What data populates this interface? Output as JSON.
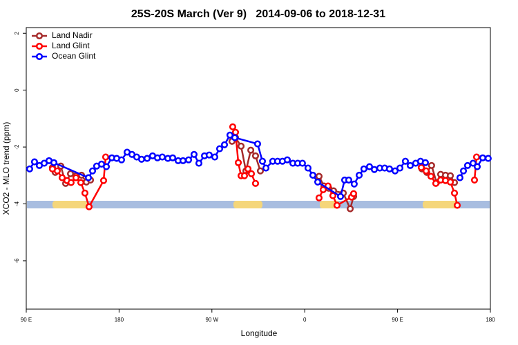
{
  "chart_data": {
    "type": "line",
    "title": "25S-20S March (Ver 9)   2014-09-06 to 2018-12-31",
    "x_label": "Longitude",
    "y_label": "XCO2 - MLO trend (ppm)",
    "xlim": [
      90,
      540
    ],
    "ylim": [
      -7.7,
      2.2
    ],
    "xticks": [
      {
        "value": 90,
        "label": "90 E"
      },
      {
        "value": 180,
        "label": "180"
      },
      {
        "value": 270,
        "label": "90 W"
      },
      {
        "value": 360,
        "label": "0"
      },
      {
        "value": 450,
        "label": "90 E"
      },
      {
        "value": 540,
        "label": "180"
      }
    ],
    "yticks": [
      2,
      0,
      -2,
      -4,
      -6
    ],
    "legend": "top-left",
    "series": [
      {
        "name": "Land Nadir",
        "color": "#a52a2a",
        "x": [
          115.4,
          118.1,
          123.5,
          128.2,
          132.9,
          138.2,
          143.6,
          148.3,
          152.3,
          null,
          289.5,
          292.9,
          298.3,
          303,
          307.7,
          312.3,
          317,
          null,
          373.9,
          378.6,
          383.3,
          388,
          397.4,
          404.1,
          407.4,
          null,
          473.7,
          478.3,
          483,
          487.8,
          491.8,
          496.5,
          501.2,
          505.2
        ],
        "values": [
          -2.72,
          -2.89,
          -2.67,
          -3.28,
          -2.94,
          -3.01,
          -2.99,
          -3.23,
          -3.16,
          null,
          -1.8,
          -1.67,
          -1.97,
          -2.84,
          -2.11,
          -2.31,
          -2.84,
          null,
          -3.03,
          -3.37,
          -3.45,
          -3.54,
          -3.62,
          -4.17,
          -3.74,
          null,
          -2.77,
          -2.89,
          -2.65,
          -3.25,
          -2.96,
          -2.99,
          -3.01,
          -3.25
        ]
      },
      {
        "name": "Land Glint",
        "color": "#ff0000",
        "x": [
          115.4,
          120.1,
          124.8,
          129.5,
          133.5,
          138.2,
          142.9,
          146.9,
          150.9,
          165,
          167,
          null,
          290.2,
          292.9,
          295.6,
          298.3,
          301.6,
          305,
          308.3,
          312.3,
          null,
          373.9,
          377.9,
          382.6,
          387.3,
          391.3,
          405.4,
          407.4,
          null,
          473,
          477.7,
          482.4,
          487.1,
          491.8,
          496.5,
          501.2,
          505.2,
          507.9,
          null,
          524.6,
          526.6
        ],
        "values": [
          -2.77,
          -2.84,
          -3.08,
          -3.18,
          -3.25,
          -3.08,
          -3.25,
          -3.62,
          -4.1,
          -3.18,
          -2.35,
          null,
          -1.29,
          -1.48,
          -2.55,
          -3.01,
          -3.01,
          -2.77,
          -2.94,
          -3.28,
          null,
          -3.79,
          -3.5,
          -3.37,
          -3.71,
          -4.05,
          -3.76,
          -3.64,
          null,
          -2.72,
          -2.84,
          -3.03,
          -3.28,
          -3.16,
          -3.18,
          -3.23,
          -3.62,
          -4.05,
          null,
          -3.16,
          -2.35
        ]
      },
      {
        "name": "Ocean Glint",
        "color": "#0000ff",
        "x": [
          93.3,
          98,
          102.7,
          107.4,
          112.1,
          116.8,
          150.3,
          154.3,
          158.3,
          163,
          167.7,
          173,
          177.7,
          182.4,
          187.8,
          192.5,
          197.1,
          201.8,
          207.2,
          212.5,
          217.2,
          221.9,
          227.3,
          232,
          237.3,
          242,
          247.4,
          252.7,
          257.4,
          262.8,
          267.4,
          272.8,
          277.5,
          282.2,
          287.5,
          292.2,
          314.3,
          319,
          322.4,
          329,
          333.7,
          338.4,
          343.1,
          348.5,
          353.2,
          357.8,
          363.2,
          367.9,
          372.6,
          394.7,
          398.7,
          402.7,
          408,
          412.8,
          417.4,
          422.8,
          427.5,
          432.8,
          437.5,
          442.2,
          447.6,
          452.3,
          457.6,
          462.3,
          467.6,
          472.3,
          477,
          null,
          510.5,
          513.9,
          517.9,
          523.2,
          527.3,
          532.6,
          537.9
        ],
        "values": [
          -2.77,
          -2.52,
          -2.65,
          -2.57,
          -2.48,
          -2.55,
          -3.08,
          -2.84,
          -2.67,
          -2.6,
          -2.69,
          -2.38,
          -2.4,
          -2.45,
          -2.18,
          -2.26,
          -2.35,
          -2.43,
          -2.4,
          -2.31,
          -2.38,
          -2.35,
          -2.4,
          -2.38,
          -2.48,
          -2.48,
          -2.45,
          -2.26,
          -2.57,
          -2.31,
          -2.28,
          -2.35,
          -2.06,
          -1.92,
          -1.58,
          -1.67,
          -1.89,
          -2.5,
          -2.74,
          -2.5,
          -2.5,
          -2.5,
          -2.45,
          -2.57,
          -2.57,
          -2.57,
          -2.74,
          -2.99,
          -3.23,
          -3.74,
          -3.16,
          -3.16,
          -3.3,
          -2.99,
          -2.77,
          -2.69,
          -2.79,
          -2.74,
          -2.74,
          -2.77,
          -2.84,
          -2.74,
          -2.5,
          -2.65,
          -2.57,
          -2.5,
          -2.55,
          null,
          -3.08,
          -2.84,
          -2.65,
          -2.57,
          -2.69,
          -2.38,
          -2.4
        ]
      }
    ]
  }
}
